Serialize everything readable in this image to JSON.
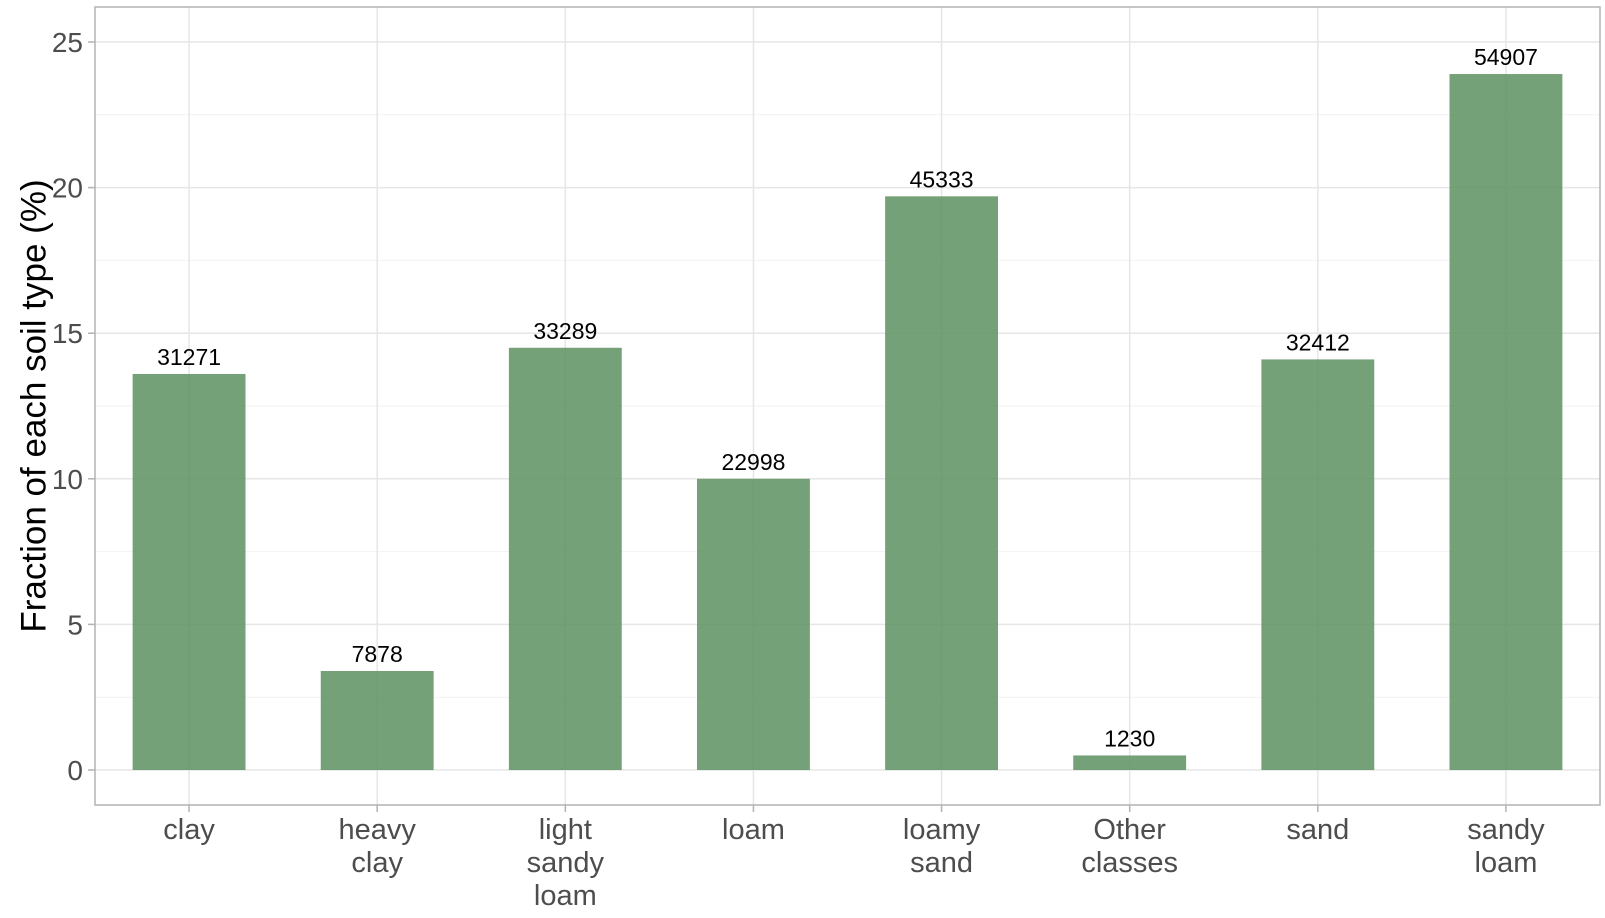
{
  "chart_data": {
    "type": "bar",
    "title": "",
    "xlabel": "",
    "ylabel": "Fraction of each soil type (%)",
    "ylim": [
      0,
      26
    ],
    "yticks": [
      0,
      5,
      10,
      15,
      20,
      25
    ],
    "ytick_labels": [
      "0",
      "5",
      "10",
      "15",
      "20",
      "25"
    ],
    "grid": true,
    "legend": "none",
    "categories": [
      [
        "clay"
      ],
      [
        "heavy",
        "clay"
      ],
      [
        "light",
        "sandy",
        "loam"
      ],
      [
        "loam"
      ],
      [
        "loamy",
        "sand"
      ],
      [
        "Other",
        "classes"
      ],
      [
        "sand"
      ],
      [
        "sandy",
        "loam"
      ]
    ],
    "values": [
      13.6,
      3.4,
      14.5,
      10.0,
      19.7,
      0.5,
      14.1,
      23.9
    ],
    "data_labels": [
      "31271",
      "7878",
      "33289",
      "22998",
      "45333",
      "1230",
      "32412",
      "54907"
    ],
    "colors": {
      "bar": "#5d9160",
      "bar_opacity": 0.85,
      "grid_major": "#e6e6e6",
      "grid_minor": "#f2f2f2",
      "panel_border": "#b3b3b3",
      "tick": "#b3b3b3"
    }
  }
}
